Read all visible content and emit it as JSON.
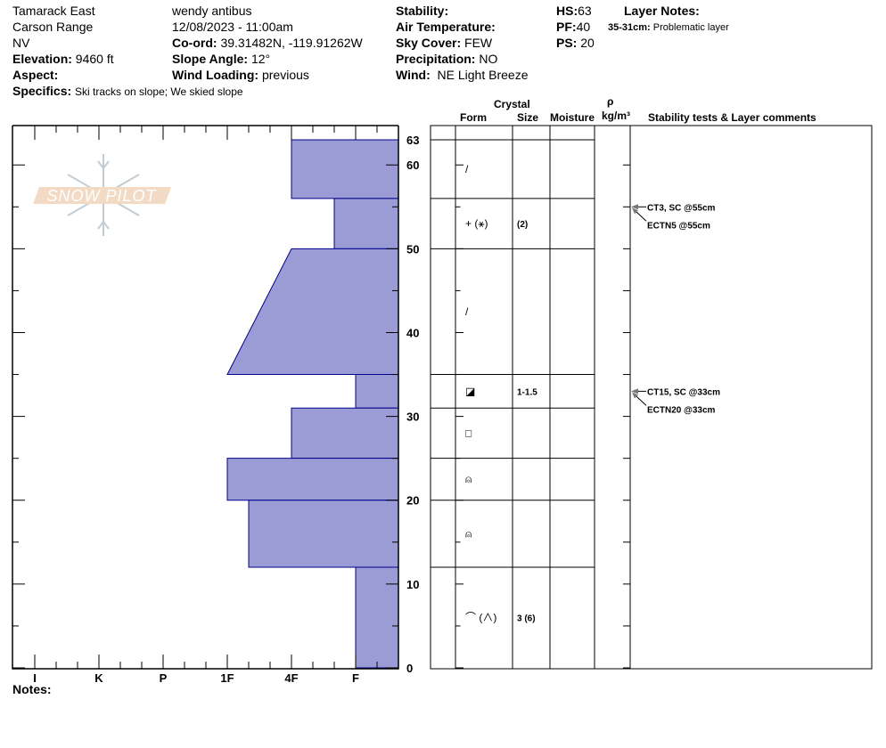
{
  "header": {
    "location": "Tamarack East",
    "range": "Carson Range",
    "state": "NV",
    "elevation_label": "Elevation:",
    "elevation": "9460 ft",
    "aspect_label": "Aspect:",
    "aspect": "",
    "specifics_label": "Specifics:",
    "specifics": "Ski tracks on slope; We skied slope",
    "observer": "wendy antibus",
    "datetime": "12/08/2023 - 11:00am",
    "coord_label": "Co-ord:",
    "coord": "39.31482N, -119.91262W",
    "slope_label": "Slope Angle:",
    "slope": "12°",
    "wind_loading_label": "Wind Loading:",
    "wind_loading": "previous",
    "stability_label": "Stability:",
    "stability": "",
    "air_temp_label": "Air Temperature:",
    "air_temp": "",
    "sky_label": "Sky Cover:",
    "sky": "FEW",
    "precip_label": "Precipitation:",
    "precip": "NO",
    "wind_label": "Wind:",
    "wind": "NE Light Breeze",
    "hs_label": "HS:",
    "hs": "63",
    "pf_label": "PF:",
    "pf": "40",
    "ps_label": "PS:",
    "ps": "20",
    "layer_notes_label": "Layer Notes:",
    "layer_note_range": "35-31cm:",
    "layer_note_text": "Problematic layer"
  },
  "columns": {
    "crystal": "Crystal",
    "form": "Form",
    "size": "Size",
    "moisture": "Moisture",
    "rho": "ρ",
    "density_unit": "kg/m³",
    "comments": "Stability tests & Layer comments"
  },
  "hardness_axis": [
    "I",
    "K",
    "P",
    "1F",
    "4F",
    "F"
  ],
  "depth_ticks": [
    "63",
    "60",
    "50",
    "40",
    "30",
    "20",
    "10",
    "0"
  ],
  "notes_label": "Notes:",
  "logo_text": "SNOW PILOT",
  "colors": {
    "layer_fill": "#9b9bd6",
    "layer_stroke": "#00008b"
  },
  "layers": [
    {
      "top": 63,
      "bottom": 56,
      "hardness_top": "4F",
      "hardness_bottom": "4F",
      "form": "/",
      "size": ""
    },
    {
      "top": 56,
      "bottom": 50,
      "hardness_top": "F+",
      "hardness_bottom": "F+",
      "form": "+ (⚹)",
      "size": "(2)"
    },
    {
      "top": 50,
      "bottom": 35,
      "hardness_top": "4F",
      "hardness_bottom": "1F",
      "form": "/",
      "size": ""
    },
    {
      "top": 35,
      "bottom": 31,
      "hardness_top": "F",
      "hardness_bottom": "F",
      "form": "◪",
      "size": "1-1.5"
    },
    {
      "top": 31,
      "bottom": 25,
      "hardness_top": "4F",
      "hardness_bottom": "4F",
      "form": "□",
      "size": ""
    },
    {
      "top": 25,
      "bottom": 20,
      "hardness_top": "1F",
      "hardness_bottom": "1F",
      "form": "⍝",
      "size": ""
    },
    {
      "top": 20,
      "bottom": 12,
      "hardness_top": "1F-",
      "hardness_bottom": "1F-",
      "form": "⍝",
      "size": ""
    },
    {
      "top": 12,
      "bottom": 0,
      "hardness_top": "F",
      "hardness_bottom": "F",
      "form": "⌒ (∧)",
      "size": "3 (6)"
    }
  ],
  "tests": [
    {
      "depth": 55,
      "label": "CT3, SC @55cm"
    },
    {
      "depth": 55,
      "label": "ECTN5 @55cm"
    },
    {
      "depth": 33,
      "label": "CT15, SC @33cm"
    },
    {
      "depth": 33,
      "label": "ECTN20 @33cm"
    }
  ]
}
